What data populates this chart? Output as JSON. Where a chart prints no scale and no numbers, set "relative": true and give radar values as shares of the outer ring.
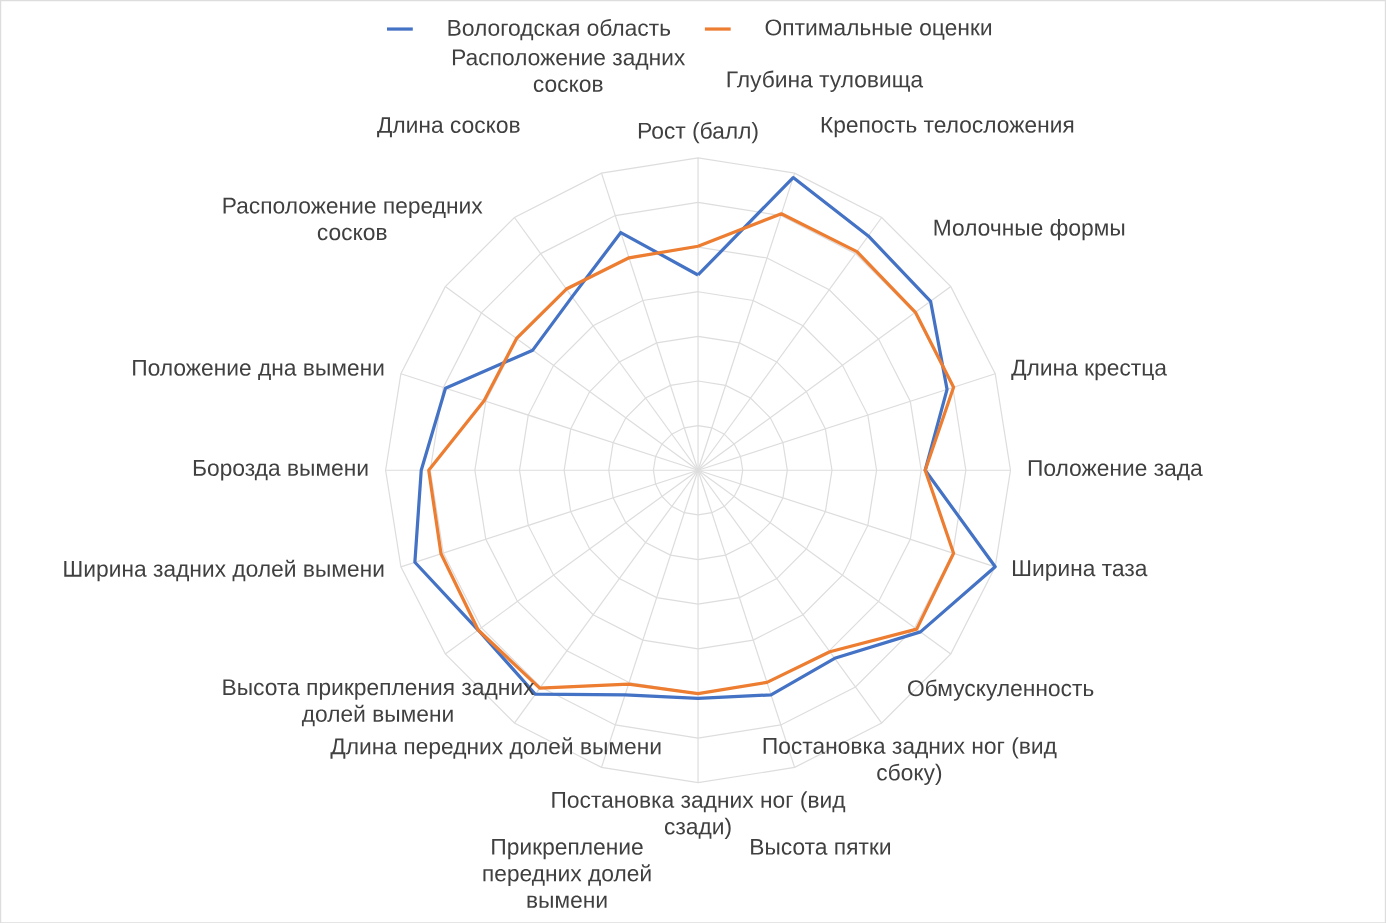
{
  "chart_data": {
    "type": "radar",
    "relative": true,
    "grid": true,
    "legend": "top",
    "categories": [
      "Рост (балл)",
      "Глубина туловища",
      "Крепость телосложения",
      "Молочные формы",
      "Длина крестца",
      "Положение зада",
      "Ширина таза",
      "Обмускуленность",
      "Постановка задних ног (вид сбоку)",
      "Высота пятки",
      "Постановка задних ног (вид сзади)",
      "Прикрепление передних долей вымени",
      "Длина передних долей вымени",
      "Высота прикрепления задних долей вымени",
      "Ширина задних долей вымени",
      "Борозда вымени",
      "Положение дна вымени",
      "Расположение передних сосков",
      "Длина сосков",
      "Расположение задних сосков"
    ],
    "series": [
      {
        "name": "Вологодская область",
        "color": "#4472c4",
        "values": [
          0.625,
          0.985,
          0.927,
          0.92,
          0.838,
          0.727,
          1.0,
          0.88,
          0.744,
          0.756,
          0.73,
          0.756,
          0.886,
          0.87,
          0.953,
          0.886,
          0.85,
          0.654,
          0.686,
          0.8
        ]
      },
      {
        "name": "Оптимальные оценки",
        "color": "#ed7d31",
        "values": [
          0.717,
          0.863,
          0.865,
          0.86,
          0.86,
          0.727,
          0.86,
          0.865,
          0.718,
          0.714,
          0.715,
          0.72,
          0.862,
          0.87,
          0.865,
          0.862,
          0.72,
          0.718,
          0.717,
          0.715
        ]
      }
    ]
  }
}
